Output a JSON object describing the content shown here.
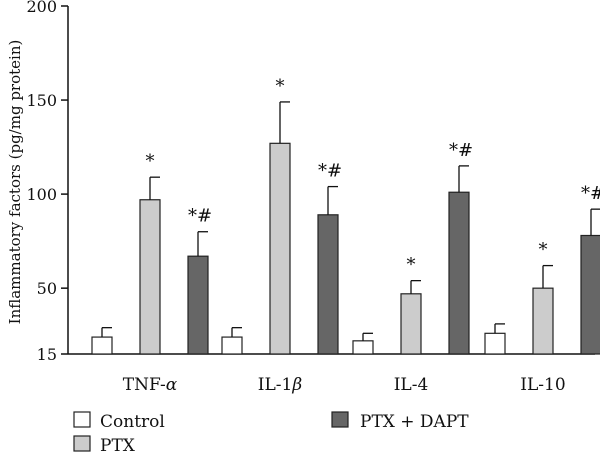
{
  "chart_data": {
    "type": "bar",
    "ylabel": "Inflammatory factors (pg/mg protein)",
    "y_ticks": [
      "15",
      "50",
      "100",
      "150",
      "200"
    ],
    "ylim": [
      15,
      200
    ],
    "categories": [
      "TNF-α",
      "IL-1β",
      "IL-4",
      "IL-10"
    ],
    "category_labels": [
      {
        "main": "TNF-",
        "italic": "α"
      },
      {
        "main": "IL-1",
        "italic": "β"
      },
      {
        "main": "IL-4",
        "italic": ""
      },
      {
        "main": "IL-10",
        "italic": ""
      }
    ],
    "series": [
      {
        "name": "Control",
        "color": "#ffffff",
        "values": [
          24,
          24,
          22,
          26
        ],
        "error": [
          5,
          5,
          4,
          5
        ],
        "annotations": [
          "",
          "",
          "",
          ""
        ]
      },
      {
        "name": "PTX",
        "color": "#cccccc",
        "values": [
          97,
          127,
          47,
          50
        ],
        "error": [
          12,
          22,
          7,
          12
        ],
        "annotations": [
          "*",
          "*",
          "*",
          "*"
        ]
      },
      {
        "name": "PTX + DAPT",
        "color": "#666666",
        "values": [
          67,
          89,
          101,
          78
        ],
        "error": [
          13,
          15,
          14,
          14
        ],
        "annotations": [
          "*#",
          "*#",
          "*#",
          "*#"
        ]
      }
    ],
    "grid": false,
    "legend_placement": "bottom",
    "bar_stroke": "#222222"
  }
}
